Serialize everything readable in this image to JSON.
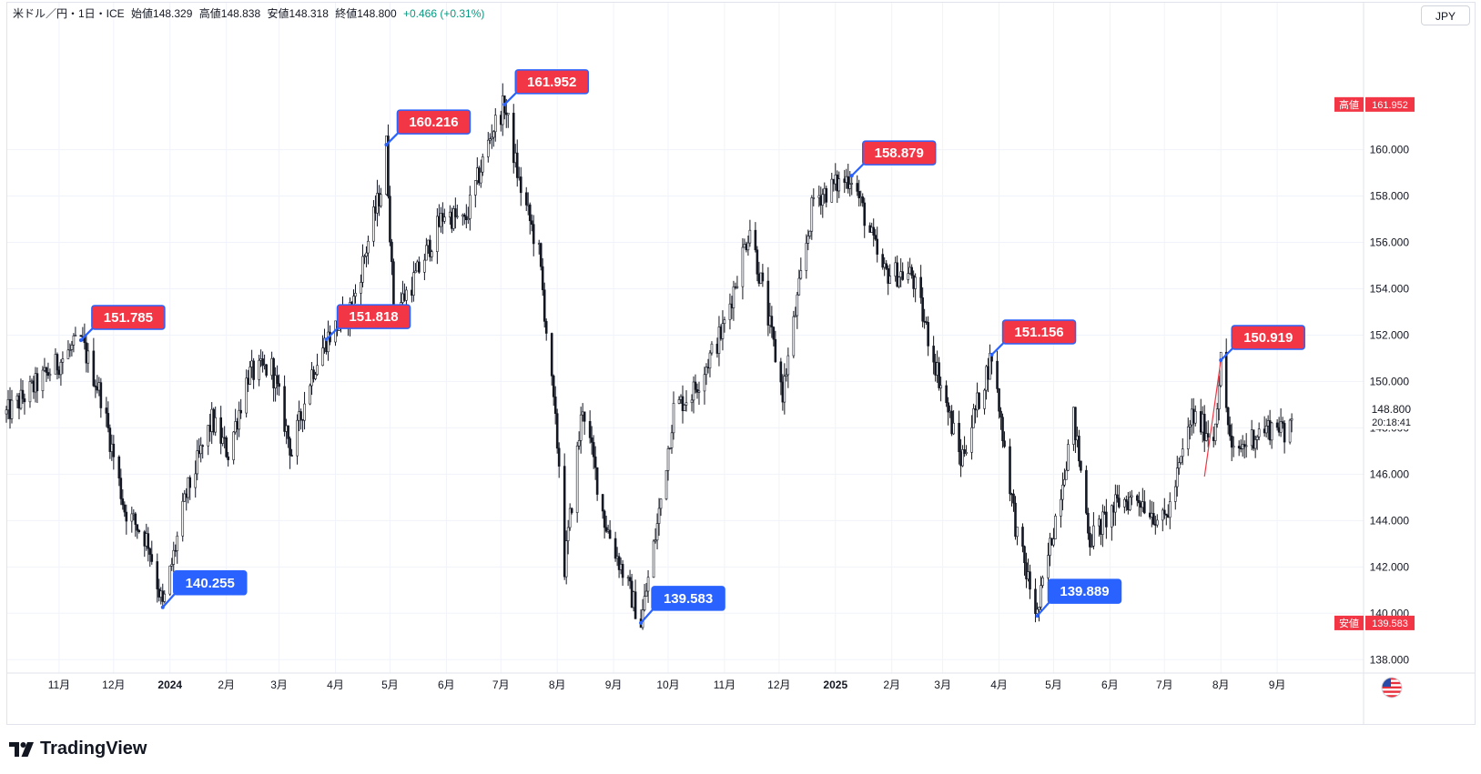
{
  "header": {
    "pair": "米ドル／円・1日・ICE",
    "open": "始値148.329",
    "high": "高値148.838",
    "low": "安値148.318",
    "close": "終値148.800",
    "change": "+0.466 (+0.31%)"
  },
  "currency_button": "JPY",
  "price_axis": {
    "current_price": "148.800",
    "countdown": "20:18:41",
    "high_tag": {
      "label": "高値",
      "value": "161.952"
    },
    "low_tag": {
      "label": "安値",
      "value": "139.583"
    }
  },
  "branding": "TradingView",
  "colors": {
    "peak_label": "#f23645",
    "trough_label": "#2962ff",
    "candle": "#131722",
    "grid": "#f0f3fa",
    "trendline": "#f23645"
  },
  "chart_data": {
    "type": "candlestick",
    "x_axis_labels": [
      "11月",
      "12月",
      "2024",
      "2月",
      "3月",
      "4月",
      "5月",
      "6月",
      "7月",
      "8月",
      "9月",
      "10月",
      "11月",
      "12月",
      "2025",
      "2月",
      "3月",
      "4月",
      "5月",
      "6月",
      "7月",
      "8月",
      "9月"
    ],
    "x_axis_dates": [
      "2023-11-01",
      "2023-12-01",
      "2024-01-01",
      "2024-02-01",
      "2024-03-01",
      "2024-04-01",
      "2024-05-01",
      "2024-06-01",
      "2024-07-01",
      "2024-08-01",
      "2024-09-01",
      "2024-10-01",
      "2024-11-01",
      "2024-12-01",
      "2025-01-01",
      "2025-02-01",
      "2025-03-01",
      "2025-04-01",
      "2025-05-01",
      "2025-06-01",
      "2025-07-01",
      "2025-08-01",
      "2025-09-01"
    ],
    "y_ticks": [
      "138.000",
      "140.000",
      "142.000",
      "144.000",
      "146.000",
      "148.000",
      "150.000",
      "152.000",
      "154.000",
      "156.000",
      "158.000",
      "160.000"
    ],
    "ylim": [
      137.5,
      164.3
    ],
    "xlim": [
      "2023-10-03",
      "2025-10-17"
    ],
    "price_path": [
      {
        "date": "2023-10-03",
        "value": 148.6
      },
      {
        "date": "2023-10-20",
        "value": 149.9
      },
      {
        "date": "2023-11-13",
        "value": 151.785
      },
      {
        "date": "2023-11-24",
        "value": 149.4
      },
      {
        "date": "2023-12-07",
        "value": 144.5
      },
      {
        "date": "2023-12-20",
        "value": 143.1
      },
      {
        "date": "2023-12-28",
        "value": 140.255
      },
      {
        "date": "2024-01-10",
        "value": 145.1
      },
      {
        "date": "2024-01-24",
        "value": 148.3
      },
      {
        "date": "2024-02-02",
        "value": 146.9
      },
      {
        "date": "2024-02-13",
        "value": 150.3
      },
      {
        "date": "2024-02-26",
        "value": 150.6
      },
      {
        "date": "2024-03-08",
        "value": 146.9
      },
      {
        "date": "2024-03-19",
        "value": 150.4
      },
      {
        "date": "2024-03-27",
        "value": 151.818
      },
      {
        "date": "2024-04-10",
        "value": 153.2
      },
      {
        "date": "2024-04-26",
        "value": 158.3
      },
      {
        "date": "2024-04-29",
        "value": 160.216
      },
      {
        "date": "2024-05-03",
        "value": 152.9
      },
      {
        "date": "2024-05-15",
        "value": 154.5
      },
      {
        "date": "2024-05-31",
        "value": 157.3
      },
      {
        "date": "2024-06-11",
        "value": 156.8
      },
      {
        "date": "2024-06-26",
        "value": 160.8
      },
      {
        "date": "2024-07-03",
        "value": 161.952
      },
      {
        "date": "2024-07-11",
        "value": 158.6
      },
      {
        "date": "2024-07-22",
        "value": 155.5
      },
      {
        "date": "2024-08-02",
        "value": 146.5
      },
      {
        "date": "2024-08-05",
        "value": 142.0
      },
      {
        "date": "2024-08-15",
        "value": 149.0
      },
      {
        "date": "2024-08-27",
        "value": 144.0
      },
      {
        "date": "2024-09-16",
        "value": 139.583
      },
      {
        "date": "2024-09-25",
        "value": 143.8
      },
      {
        "date": "2024-10-04",
        "value": 148.8
      },
      {
        "date": "2024-10-15",
        "value": 149.6
      },
      {
        "date": "2024-10-31",
        "value": 152.2
      },
      {
        "date": "2024-11-15",
        "value": 156.7
      },
      {
        "date": "2024-12-03",
        "value": 149.5
      },
      {
        "date": "2024-12-20",
        "value": 157.9
      },
      {
        "date": "2025-01-10",
        "value": 158.879
      },
      {
        "date": "2025-01-27",
        "value": 154.7
      },
      {
        "date": "2025-02-12",
        "value": 154.6
      },
      {
        "date": "2025-03-03",
        "value": 149.0
      },
      {
        "date": "2025-03-11",
        "value": 146.6
      },
      {
        "date": "2025-03-28",
        "value": 151.156
      },
      {
        "date": "2025-04-11",
        "value": 143.3
      },
      {
        "date": "2025-04-22",
        "value": 139.889
      },
      {
        "date": "2025-05-12",
        "value": 148.4
      },
      {
        "date": "2025-05-21",
        "value": 143.2
      },
      {
        "date": "2025-06-06",
        "value": 144.8
      },
      {
        "date": "2025-06-17",
        "value": 145.0
      },
      {
        "date": "2025-06-30",
        "value": 143.9
      },
      {
        "date": "2025-07-04",
        "value": 144.6
      },
      {
        "date": "2025-07-16",
        "value": 148.5
      },
      {
        "date": "2025-07-28",
        "value": 147.6
      },
      {
        "date": "2025-08-01",
        "value": 150.919
      },
      {
        "date": "2025-08-07",
        "value": 146.8
      },
      {
        "date": "2025-08-21",
        "value": 147.8
      },
      {
        "date": "2025-09-03",
        "value": 148.2
      },
      {
        "date": "2025-09-05",
        "value": 147.2
      },
      {
        "date": "2025-09-09",
        "value": 148.8
      }
    ],
    "peak_labels": [
      {
        "date": "2023-11-13",
        "value": 151.785,
        "text": "151.785"
      },
      {
        "date": "2024-03-27",
        "value": 151.818,
        "text": "151.818"
      },
      {
        "date": "2024-04-29",
        "value": 160.216,
        "text": "160.216"
      },
      {
        "date": "2024-07-03",
        "value": 161.952,
        "text": "161.952"
      },
      {
        "date": "2025-01-10",
        "value": 158.879,
        "text": "158.879"
      },
      {
        "date": "2025-03-28",
        "value": 151.156,
        "text": "151.156"
      },
      {
        "date": "2025-08-01",
        "value": 150.919,
        "text": "150.919"
      }
    ],
    "trough_labels": [
      {
        "date": "2023-12-28",
        "value": 140.255,
        "text": "140.255"
      },
      {
        "date": "2024-09-16",
        "value": 139.583,
        "text": "139.583"
      },
      {
        "date": "2025-04-22",
        "value": 139.889,
        "text": "139.889"
      }
    ],
    "trendline": {
      "start": {
        "date": "2025-07-23",
        "value": 145.9
      },
      "end": {
        "date": "2025-08-01",
        "value": 150.919
      }
    }
  }
}
